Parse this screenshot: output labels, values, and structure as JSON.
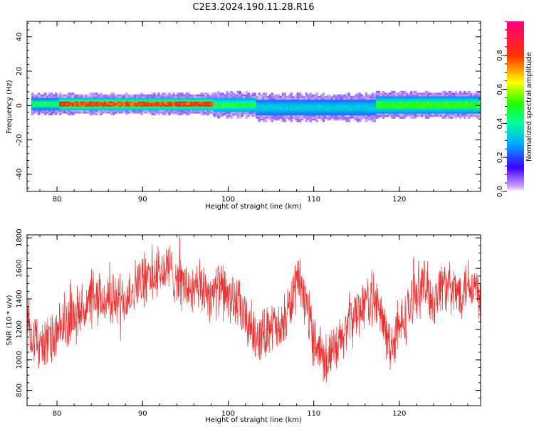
{
  "title": "C2E3.2024.190.11.28.R16",
  "colors": {
    "signal": "#f03030",
    "background": "#ffffff",
    "axis": "#000000"
  },
  "chart_data": [
    {
      "type": "heatmap",
      "xlabel": "Height of straight line (km)",
      "ylabel": "Frequency (Hz)",
      "xlim": [
        76.5,
        129.5
      ],
      "ylim": [
        -50,
        49
      ],
      "x_ticks": [
        "80",
        "90",
        "100",
        "110",
        "120"
      ],
      "y_ticks": [
        "-40",
        "-20",
        "0",
        "20",
        "40"
      ],
      "colorbar": {
        "label": "Normalized spectral amplitude",
        "range": [
          0,
          1
        ],
        "ticks": [
          "0.0",
          "0.2",
          "0.4",
          "0.6",
          "0.8"
        ],
        "colormap": "gist_rainbow (violet → blue → cyan → green → yellow → red → magenta)"
      },
      "band": {
        "segments": [
          {
            "x": [
              77,
              80
            ],
            "center_hz": 1.0,
            "halfwidth_hz": 3.0,
            "peak_amplitude": 0.5
          },
          {
            "x": [
              80,
              98
            ],
            "center_hz": 1.0,
            "halfwidth_hz": 3.0,
            "peak_amplitude": 0.85
          },
          {
            "x": [
              98,
              103
            ],
            "center_hz": 0.5,
            "halfwidth_hz": 4.0,
            "peak_amplitude": 0.55
          },
          {
            "x": [
              103,
              117
            ],
            "center_hz": -1.0,
            "halfwidth_hz": 4.5,
            "peak_amplitude": 0.35
          },
          {
            "x": [
              117,
              129.5
            ],
            "center_hz": 0.5,
            "halfwidth_hz": 4.5,
            "peak_amplitude": 0.55
          }
        ]
      }
    },
    {
      "type": "line",
      "xlabel": "Height of straight line (km)",
      "ylabel": "SNR (10 * v/v)",
      "xlim": [
        76.5,
        129.5
      ],
      "ylim": [
        700,
        1820
      ],
      "x_ticks": [
        "80",
        "90",
        "100",
        "110",
        "120"
      ],
      "y_ticks": [
        "800",
        "1000",
        "1200",
        "1400",
        "1600",
        "1800"
      ],
      "envelope": {
        "x": [
          76.5,
          77,
          78,
          79,
          80,
          81,
          82,
          83,
          84,
          85,
          86,
          87,
          88,
          89,
          90,
          91,
          92,
          93,
          94,
          95,
          96,
          97,
          98,
          99,
          100,
          101,
          102,
          103,
          104,
          105,
          106,
          107,
          108,
          109,
          110,
          111,
          112,
          113,
          114,
          115,
          116,
          117,
          118,
          119,
          120,
          121,
          122,
          123,
          124,
          125,
          126,
          127,
          128,
          129,
          129.5
        ],
        "mean": [
          1300,
          1180,
          1090,
          1120,
          1150,
          1250,
          1290,
          1330,
          1380,
          1380,
          1400,
          1390,
          1410,
          1480,
          1520,
          1550,
          1570,
          1600,
          1540,
          1480,
          1440,
          1480,
          1430,
          1470,
          1420,
          1380,
          1260,
          1190,
          1150,
          1250,
          1170,
          1310,
          1500,
          1410,
          1150,
          1050,
          1020,
          1090,
          1250,
          1310,
          1380,
          1410,
          1260,
          1090,
          1200,
          1310,
          1460,
          1490,
          1380,
          1510,
          1450,
          1440,
          1520,
          1470,
          1400
        ],
        "spread": 150
      }
    }
  ]
}
